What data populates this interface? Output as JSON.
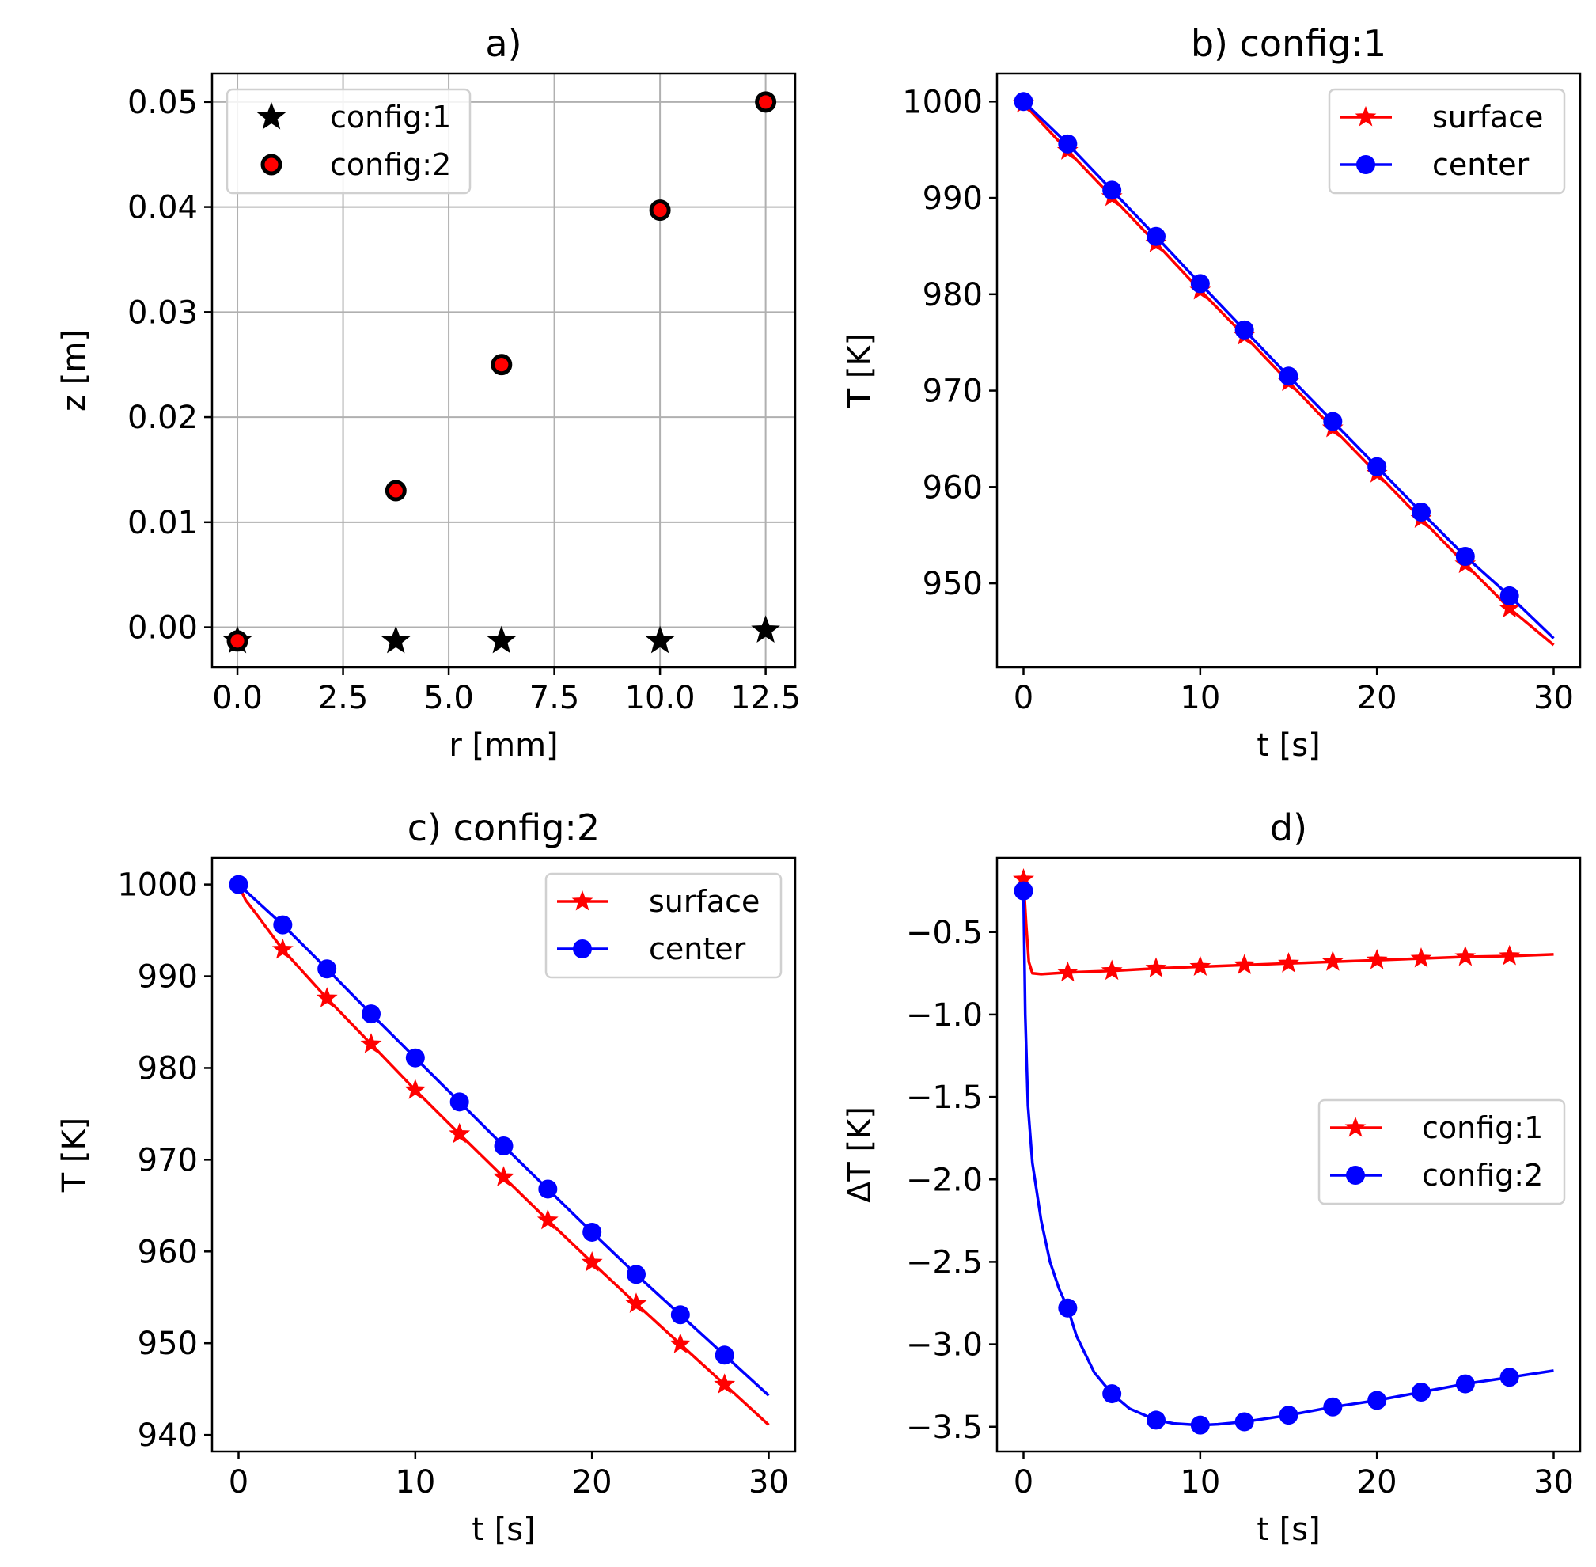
{
  "chart_data": [
    {
      "id": "a",
      "type": "scatter",
      "title": "a)",
      "xlabel": "r [mm]",
      "ylabel": "z [m]",
      "xlim": [
        -0.6,
        13.2
      ],
      "ylim": [
        -0.0038,
        0.0527
      ],
      "xticks": [
        0,
        2.5,
        5,
        7.5,
        10,
        12.5
      ],
      "xtick_labels": [
        "0.0",
        "2.5",
        "5.0",
        "7.5",
        "10.0",
        "12.5"
      ],
      "yticks": [
        0,
        0.01,
        0.02,
        0.03,
        0.04,
        0.05
      ],
      "ytick_labels": [
        "0.00",
        "0.01",
        "0.02",
        "0.03",
        "0.04",
        "0.05"
      ],
      "grid": true,
      "legend": "top-left",
      "series": [
        {
          "name": "config:1",
          "marker": "star",
          "color": "#000000",
          "x": [
            0,
            3.75,
            6.25,
            10,
            12.5
          ],
          "y": [
            -0.0013,
            -0.0013,
            -0.0013,
            -0.0013,
            -0.0003
          ]
        },
        {
          "name": "config:2",
          "marker": "circle",
          "color": "#ff0000",
          "edge": "#000000",
          "x": [
            0,
            3.75,
            6.25,
            10,
            12.5
          ],
          "y": [
            -0.0013,
            0.013,
            0.025,
            0.0397,
            0.05
          ]
        }
      ]
    },
    {
      "id": "b",
      "type": "line",
      "title": "b) config:1",
      "xlabel": "t [s]",
      "ylabel": "T [K]",
      "xlim": [
        -1.5,
        31.5
      ],
      "ylim": [
        941.3,
        1002.9
      ],
      "xticks": [
        0,
        10,
        20,
        30
      ],
      "xtick_labels": [
        "0",
        "10",
        "20",
        "30"
      ],
      "yticks": [
        950,
        960,
        970,
        980,
        990,
        1000
      ],
      "ytick_labels": [
        "950",
        "960",
        "970",
        "980",
        "990",
        "1000"
      ],
      "grid": false,
      "legend": "top-right",
      "series": [
        {
          "name": "surface",
          "color": "#ff0000",
          "marker": "star",
          "x": [
            0,
            2.5,
            5,
            7.5,
            10,
            12.5,
            15,
            17.5,
            20,
            22.5,
            25,
            27.5,
            30
          ],
          "y": [
            999.8,
            994.9,
            990.1,
            985.3,
            980.4,
            975.7,
            970.9,
            966.1,
            961.4,
            956.7,
            952.0,
            947.4,
            943.6
          ],
          "marker_x": [
            0,
            2.5,
            5,
            7.5,
            10,
            12.5,
            15,
            17.5,
            20,
            22.5,
            25,
            27.5
          ]
        },
        {
          "name": "center",
          "color": "#0000ff",
          "marker": "circle",
          "x": [
            0,
            2.5,
            5,
            7.5,
            10,
            12.5,
            15,
            17.5,
            20,
            22.5,
            25,
            27.5,
            30
          ],
          "y": [
            1000.0,
            995.6,
            990.8,
            986.0,
            981.1,
            976.3,
            971.5,
            966.8,
            962.1,
            957.4,
            952.8,
            948.7,
            944.3
          ],
          "marker_x": [
            0,
            2.5,
            5,
            7.5,
            10,
            12.5,
            15,
            17.5,
            20,
            22.5,
            25,
            27.5
          ]
        }
      ]
    },
    {
      "id": "c",
      "type": "line",
      "title": "c) config:2",
      "xlabel": "t [s]",
      "ylabel": "T [K]",
      "xlim": [
        -1.5,
        31.5
      ],
      "ylim": [
        938.2,
        1002.9
      ],
      "xticks": [
        0,
        10,
        20,
        30
      ],
      "xtick_labels": [
        "0",
        "10",
        "20",
        "30"
      ],
      "yticks": [
        940,
        950,
        960,
        970,
        980,
        990,
        1000
      ],
      "ytick_labels": [
        "940",
        "950",
        "960",
        "970",
        "980",
        "990",
        "1000"
      ],
      "grid": false,
      "legend": "top-right",
      "series": [
        {
          "name": "surface",
          "color": "#ff0000",
          "marker": "star",
          "x": [
            0,
            0.4,
            1,
            2.5,
            5,
            7.5,
            10,
            12.5,
            15,
            17.5,
            20,
            22.5,
            25,
            27.5,
            30
          ],
          "y": [
            999.9,
            998.3,
            996.8,
            992.9,
            987.6,
            982.6,
            977.6,
            972.8,
            968.1,
            963.4,
            958.8,
            954.3,
            949.9,
            945.5,
            941.1
          ],
          "marker_x": [
            2.5,
            5,
            7.5,
            10,
            12.5,
            15,
            17.5,
            20,
            22.5,
            25,
            27.5
          ]
        },
        {
          "name": "center",
          "color": "#0000ff",
          "marker": "circle",
          "x": [
            0,
            2.5,
            5,
            7.5,
            10,
            12.5,
            15,
            17.5,
            20,
            22.5,
            25,
            27.5,
            30
          ],
          "y": [
            1000.0,
            995.6,
            990.8,
            985.9,
            981.1,
            976.3,
            971.5,
            966.8,
            962.1,
            957.5,
            953.1,
            948.7,
            944.3
          ],
          "marker_x": [
            0,
            2.5,
            5,
            7.5,
            10,
            12.5,
            15,
            17.5,
            20,
            22.5,
            25,
            27.5
          ]
        }
      ]
    },
    {
      "id": "d",
      "type": "line",
      "title": "d)",
      "xlabel": "t [s]",
      "ylabel": "ΔT [K]",
      "xlim": [
        -1.5,
        31.5
      ],
      "ylim": [
        -3.65,
        -0.05
      ],
      "xticks": [
        0,
        10,
        20,
        30
      ],
      "xtick_labels": [
        "0",
        "10",
        "20",
        "30"
      ],
      "yticks": [
        -0.5,
        -1.0,
        -1.5,
        -2.0,
        -2.5,
        -3.0,
        -3.5
      ],
      "ytick_labels": [
        "−0.5",
        "−1.0",
        "−1.5",
        "−2.0",
        "−2.5",
        "−3.0",
        "−3.5"
      ],
      "grid": false,
      "legend": "center-right",
      "series": [
        {
          "name": "config:1",
          "color": "#ff0000",
          "marker": "star",
          "x": [
            0,
            0.15,
            0.3,
            0.5,
            1,
            2.5,
            5,
            7.5,
            10,
            12.5,
            15,
            17.5,
            20,
            22.5,
            25,
            27.5,
            30
          ],
          "y": [
            -0.18,
            -0.45,
            -0.68,
            -0.75,
            -0.755,
            -0.745,
            -0.735,
            -0.72,
            -0.71,
            -0.7,
            -0.69,
            -0.68,
            -0.67,
            -0.66,
            -0.65,
            -0.645,
            -0.635
          ],
          "marker_x": [
            0,
            2.5,
            5,
            7.5,
            10,
            12.5,
            15,
            17.5,
            20,
            22.5,
            25,
            27.5
          ]
        },
        {
          "name": "config:2",
          "color": "#0000ff",
          "marker": "circle",
          "x": [
            0,
            0.1,
            0.25,
            0.5,
            1,
            1.5,
            2,
            2.5,
            3,
            4,
            5,
            6,
            7.5,
            8.5,
            10,
            11,
            12.5,
            15,
            17.5,
            20,
            22.5,
            25,
            27.5,
            30
          ],
          "y": [
            -0.25,
            -1.0,
            -1.55,
            -1.9,
            -2.25,
            -2.5,
            -2.66,
            -2.78,
            -2.95,
            -3.17,
            -3.3,
            -3.39,
            -3.46,
            -3.48,
            -3.49,
            -3.485,
            -3.47,
            -3.43,
            -3.38,
            -3.34,
            -3.29,
            -3.24,
            -3.2,
            -3.16
          ],
          "marker_x": [
            0,
            2.5,
            5,
            7.5,
            10,
            12.5,
            15,
            17.5,
            20,
            22.5,
            25,
            27.5
          ]
        }
      ]
    }
  ]
}
